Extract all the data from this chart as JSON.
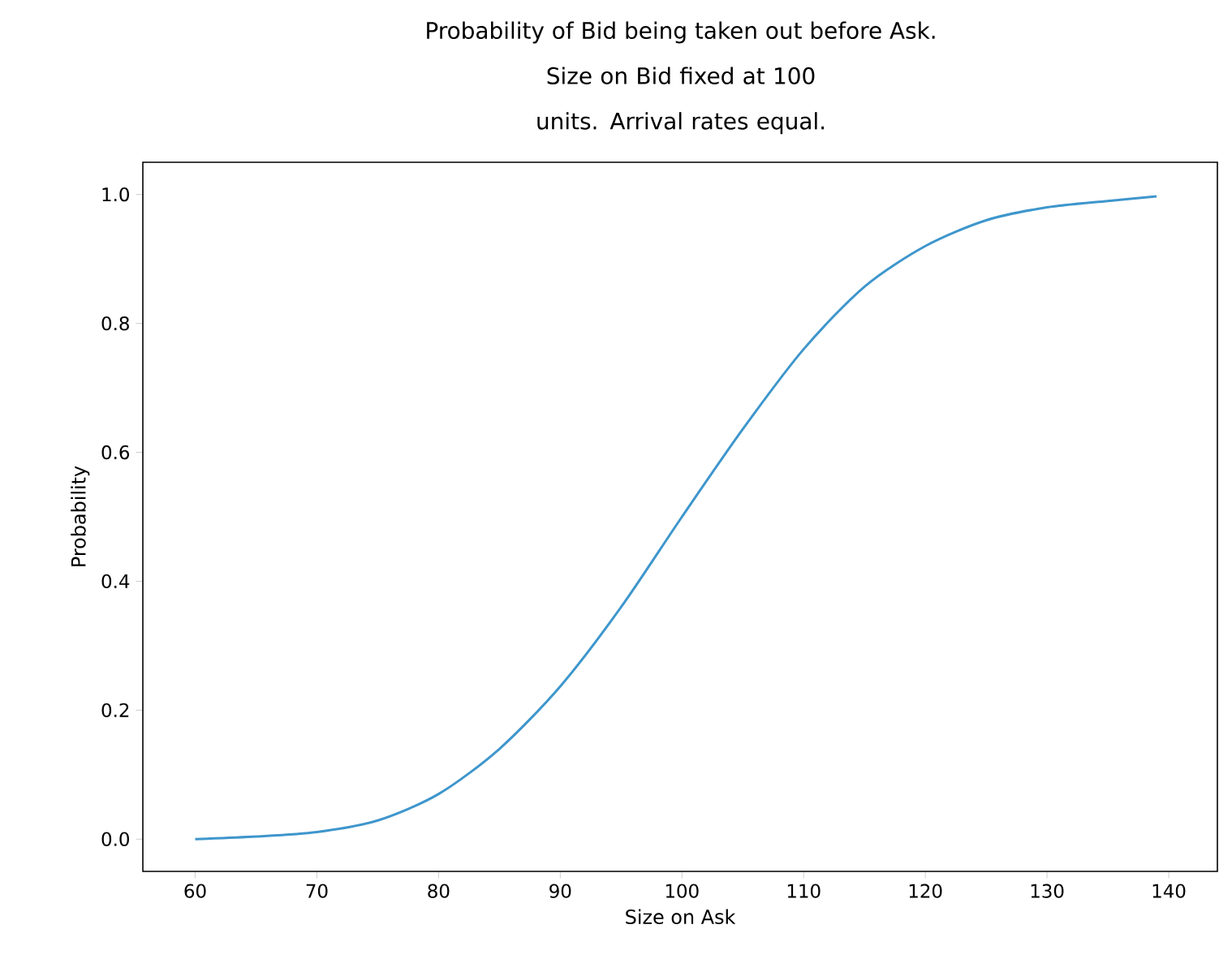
{
  "chart_data": {
    "type": "line",
    "title": "Probability of Bid being taken out before Ask.",
    "subtitle": "Size on Bid fixed at 100 units. Arrival rates equal.",
    "xlabel": "Size on Ask",
    "ylabel": "Probability",
    "x": [
      60,
      65,
      70,
      75,
      80,
      85,
      90,
      95,
      100,
      105,
      110,
      115,
      120,
      125,
      130,
      135,
      139
    ],
    "series": [
      {
        "color": "#3e96cc",
        "values": [
          0.0,
          0.004,
          0.011,
          0.029,
          0.07,
          0.14,
          0.237,
          0.36,
          0.5,
          0.636,
          0.76,
          0.857,
          0.92,
          0.96,
          0.98,
          0.99,
          0.997
        ]
      }
    ],
    "xlim": [
      55.7,
      144
    ],
    "ylim": [
      -0.05,
      1.05
    ],
    "xticks": [
      60,
      70,
      80,
      90,
      100,
      110,
      120,
      130,
      140
    ],
    "yticks": [
      {
        "value": 0,
        "label": "0.0"
      },
      {
        "value": 0.2,
        "label": "0.2"
      },
      {
        "value": 0.4,
        "label": "0.4"
      },
      {
        "value": 0.6,
        "label": "0.6"
      },
      {
        "value": 0.8,
        "label": "0.8"
      },
      {
        "value": 1,
        "label": "1.0"
      }
    ],
    "marker": "none",
    "line_style": "solid"
  }
}
